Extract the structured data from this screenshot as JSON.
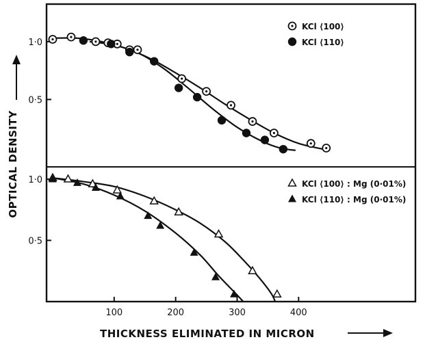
{
  "chart_data": [
    {
      "type": "scatter",
      "panel": "top",
      "xlim": [
        -10,
        590
      ],
      "ylim": [
        0,
        1.1
      ],
      "yticks": [
        "1·0",
        "0·5"
      ],
      "grid": false,
      "legend": "top-right",
      "series": [
        {
          "name": "KCl ⟨100⟩",
          "marker": "dotted-circle",
          "points": [
            [
              0,
              1.02
            ],
            [
              30,
              1.04
            ],
            [
              70,
              1.0
            ],
            [
              90,
              0.99
            ],
            [
              105,
              0.98
            ],
            [
              125,
              0.93
            ],
            [
              138,
              0.93
            ],
            [
              210,
              0.68
            ],
            [
              250,
              0.57
            ],
            [
              290,
              0.45
            ],
            [
              325,
              0.31
            ],
            [
              360,
              0.21
            ],
            [
              420,
              0.12
            ],
            [
              445,
              0.08
            ]
          ],
          "fit": [
            [
              0,
              1.03
            ],
            [
              40,
              1.03
            ],
            [
              80,
              1.0
            ],
            [
              120,
              0.94
            ],
            [
              160,
              0.85
            ],
            [
              200,
              0.73
            ],
            [
              240,
              0.6
            ],
            [
              280,
              0.46
            ],
            [
              320,
              0.33
            ],
            [
              360,
              0.21
            ],
            [
              400,
              0.12
            ],
            [
              440,
              0.07
            ]
          ]
        },
        {
          "name": "KCl ⟨110⟩",
          "marker": "filled-circle",
          "points": [
            [
              50,
              1.01
            ],
            [
              95,
              0.98
            ],
            [
              125,
              0.91
            ],
            [
              165,
              0.83
            ],
            [
              205,
              0.6
            ],
            [
              235,
              0.52
            ],
            [
              275,
              0.32
            ],
            [
              315,
              0.21
            ],
            [
              345,
              0.15
            ],
            [
              375,
              0.07
            ]
          ],
          "fit": [
            [
              60,
              1.0
            ],
            [
              100,
              0.97
            ],
            [
              140,
              0.9
            ],
            [
              180,
              0.77
            ],
            [
              220,
              0.6
            ],
            [
              260,
              0.42
            ],
            [
              300,
              0.26
            ],
            [
              340,
              0.14
            ],
            [
              370,
              0.08
            ],
            [
              395,
              0.06
            ]
          ]
        }
      ]
    },
    {
      "type": "scatter",
      "panel": "bottom",
      "xlim": [
        -10,
        590
      ],
      "ylim": [
        0,
        1.05
      ],
      "xticks": [
        100,
        200,
        300,
        400
      ],
      "yticks": [
        "1·0",
        "0·5"
      ],
      "grid": false,
      "legend": "top-right",
      "series": [
        {
          "name": "KCl ⟨100⟩ : Mg (0·01%)",
          "marker": "open-triangle",
          "points": [
            [
              0,
              1.01
            ],
            [
              25,
              1.0
            ],
            [
              65,
              0.96
            ],
            [
              105,
              0.91
            ],
            [
              165,
              0.82
            ],
            [
              205,
              0.73
            ],
            [
              270,
              0.55
            ],
            [
              325,
              0.25
            ],
            [
              365,
              0.06
            ]
          ],
          "fit": [
            [
              0,
              1.01
            ],
            [
              50,
              0.98
            ],
            [
              100,
              0.94
            ],
            [
              150,
              0.86
            ],
            [
              200,
              0.75
            ],
            [
              240,
              0.64
            ],
            [
              280,
              0.49
            ],
            [
              310,
              0.34
            ],
            [
              335,
              0.2
            ],
            [
              355,
              0.07
            ],
            [
              362,
              0.0
            ]
          ]
        },
        {
          "name": "KCl ⟨110⟩ : Mg (0·01%)",
          "marker": "filled-triangle",
          "points": [
            [
              0,
              1.0
            ],
            [
              40,
              0.97
            ],
            [
              70,
              0.93
            ],
            [
              110,
              0.86
            ],
            [
              155,
              0.7
            ],
            [
              175,
              0.62
            ],
            [
              230,
              0.4
            ],
            [
              265,
              0.2
            ],
            [
              295,
              0.06
            ]
          ],
          "fit": [
            [
              0,
              1.01
            ],
            [
              50,
              0.96
            ],
            [
              100,
              0.87
            ],
            [
              150,
              0.74
            ],
            [
              200,
              0.56
            ],
            [
              240,
              0.38
            ],
            [
              270,
              0.21
            ],
            [
              295,
              0.08
            ],
            [
              310,
              0.0
            ]
          ]
        }
      ]
    }
  ],
  "labels": {
    "ylabel": "OPTICAL DENSITY",
    "xlabel": "THICKNESS ELIMINATED IN MICRON"
  }
}
